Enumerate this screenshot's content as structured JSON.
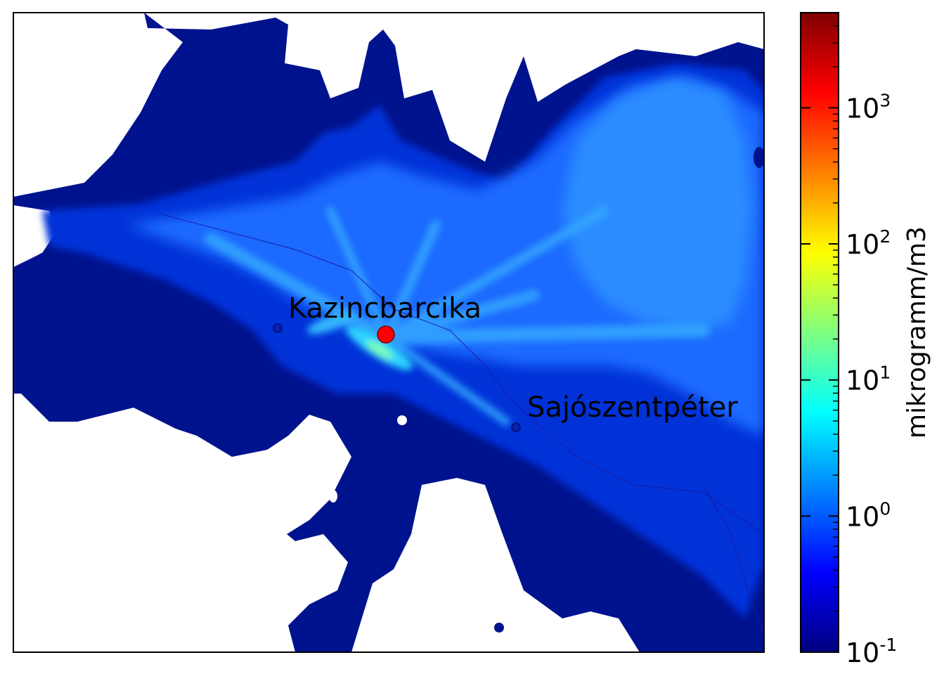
{
  "map": {
    "places": [
      {
        "name": "Kazincbarcika",
        "marker": "small-dot"
      },
      {
        "name": "Sajószentpéter",
        "marker": "small-dot"
      }
    ],
    "source_marker": {
      "color": "#ff0000"
    }
  },
  "colorbar": {
    "label": "mikrogramm/m3",
    "scale": "log",
    "range": [
      0.1,
      5000
    ],
    "colormap": "jet",
    "ticks": [
      {
        "base": "10",
        "exp": "-1",
        "value": 0.1
      },
      {
        "base": "10",
        "exp": "0",
        "value": 1
      },
      {
        "base": "10",
        "exp": "1",
        "value": 10
      },
      {
        "base": "10",
        "exp": "2",
        "value": 100
      },
      {
        "base": "10",
        "exp": "3",
        "value": 1000
      }
    ]
  },
  "colors": {
    "background": "#ffffff",
    "plume_outer": "#00138e",
    "plume_mid": "#0a3ef0",
    "plume_inner": "#1b7cff",
    "plume_core": "#2fd4ff"
  }
}
